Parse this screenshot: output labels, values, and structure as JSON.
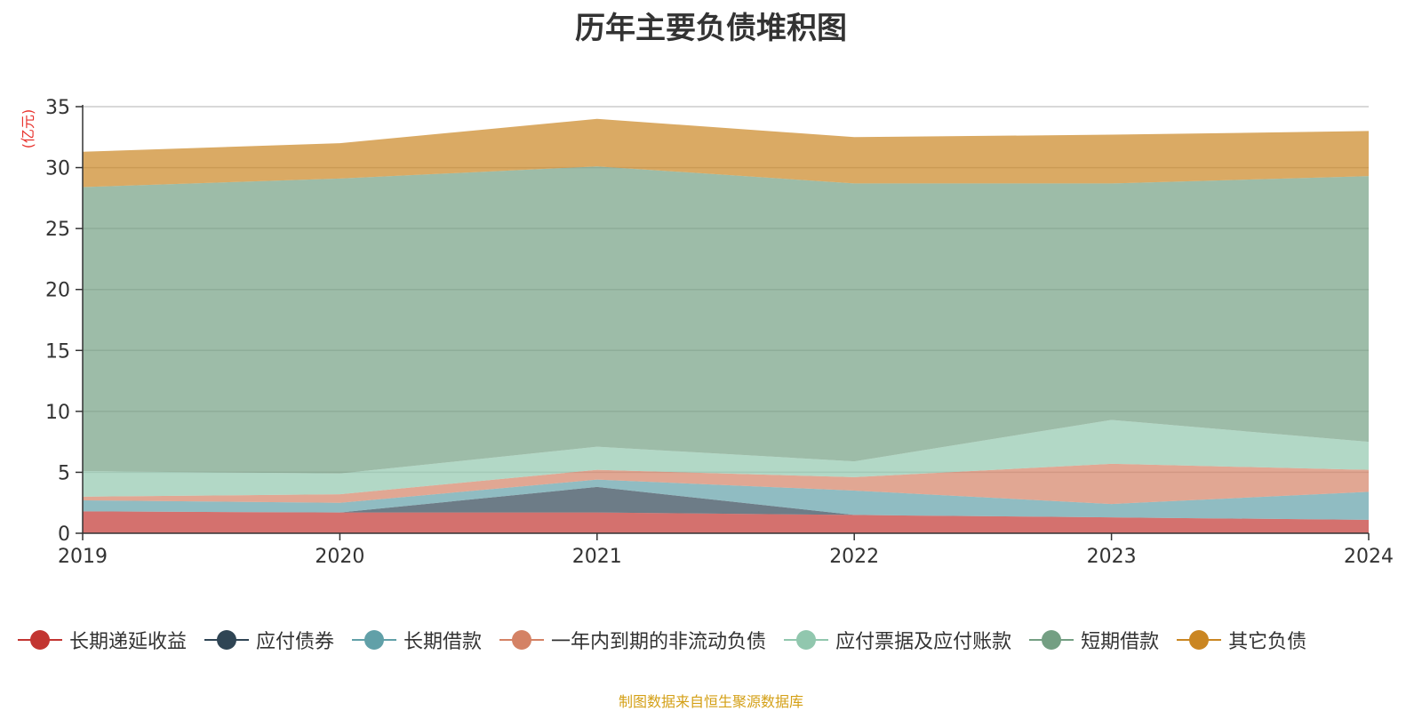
{
  "chart_data": {
    "type": "area",
    "stacked": true,
    "title": "历年主要负债堆积图",
    "y_unit": "(亿元)",
    "x": [
      "2019",
      "2020",
      "2021",
      "2022",
      "2023",
      "2024"
    ],
    "ylim": [
      0,
      35
    ],
    "y_ticks": [
      "0",
      "5",
      "10",
      "15",
      "20",
      "25",
      "30",
      "35"
    ],
    "grid": true,
    "legend_position": "bottom",
    "series": [
      {
        "name": "长期递延收益",
        "color": "#c23531",
        "values": [
          1.8,
          1.7,
          1.7,
          1.5,
          1.3,
          1.1
        ]
      },
      {
        "name": "应付债券",
        "color": "#2f4554",
        "values": [
          0.0,
          0.0,
          2.1,
          0.0,
          0.0,
          0.0
        ]
      },
      {
        "name": "长期借款",
        "color": "#61a0a8",
        "values": [
          0.9,
          0.8,
          0.6,
          2.0,
          1.1,
          2.3
        ]
      },
      {
        "name": "一年内到期的非流动负债",
        "color": "#d48265",
        "values": [
          0.3,
          0.7,
          0.8,
          1.1,
          3.3,
          1.8
        ]
      },
      {
        "name": "应付票据及应付账款",
        "color": "#91c7ae",
        "values": [
          2.1,
          1.7,
          1.9,
          1.3,
          3.6,
          2.3
        ]
      },
      {
        "name": "短期借款",
        "color": "#749f83",
        "values": [
          23.3,
          24.2,
          23.0,
          22.8,
          19.4,
          21.8
        ]
      },
      {
        "name": "其它负债",
        "color": "#ca8622",
        "values": [
          2.9,
          2.9,
          3.9,
          3.8,
          4.0,
          3.7
        ]
      }
    ]
  },
  "colors": {
    "axis": "#333333",
    "grid": "#cccccc",
    "unit_label": "#e8322d",
    "source_note": "#d4a017"
  },
  "source_note": "制图数据来自恒生聚源数据库"
}
